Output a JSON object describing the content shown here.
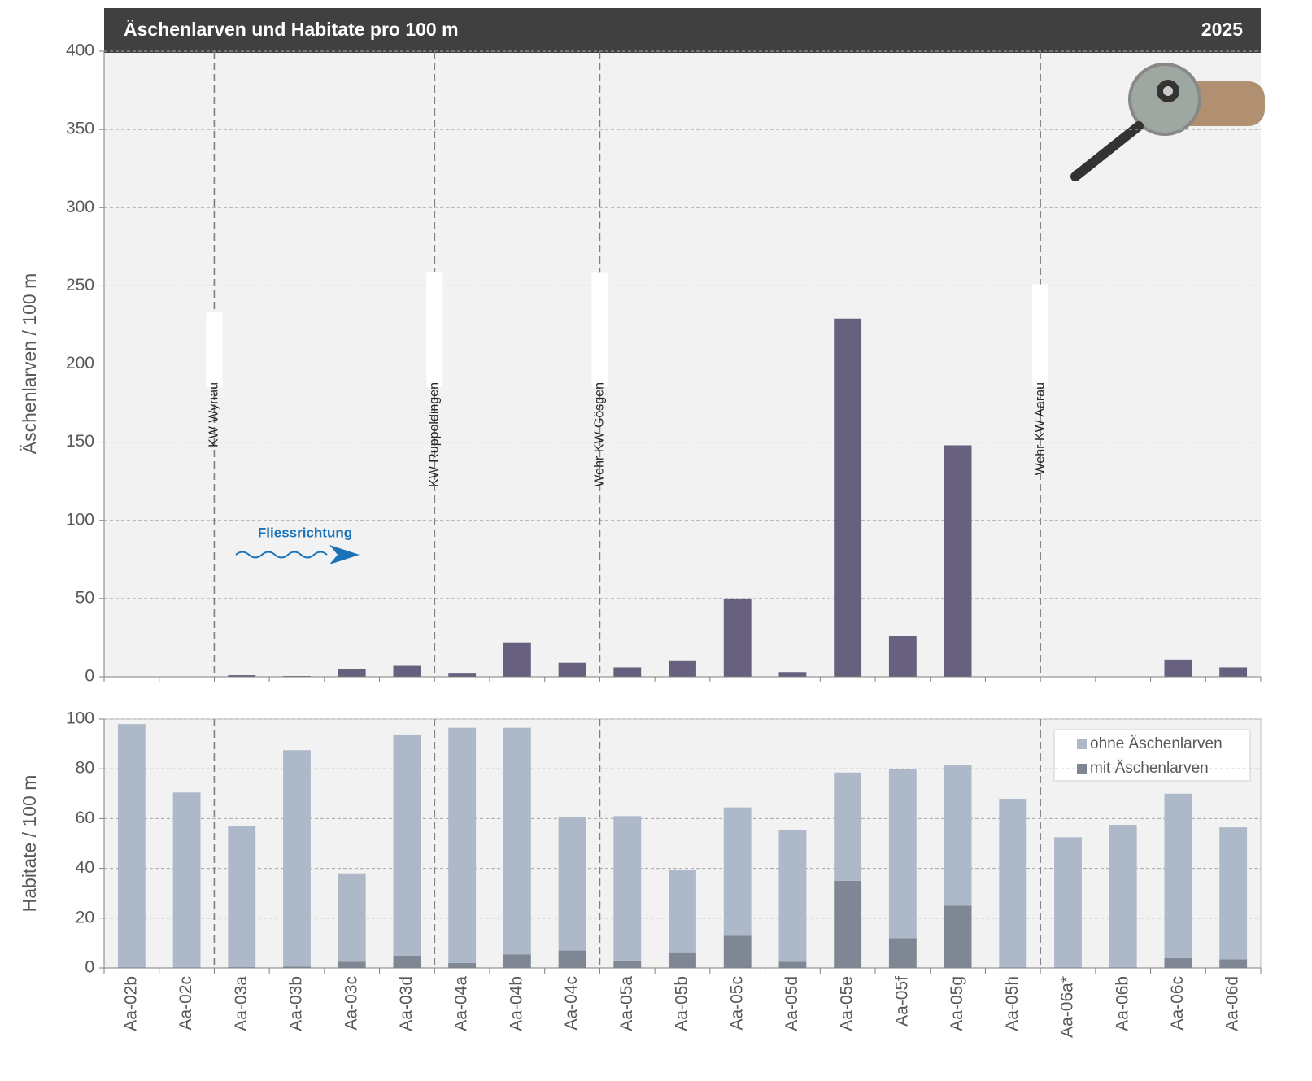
{
  "chart_data": [
    {
      "type": "bar",
      "title": "Äschenlarven und Habitate pro 100 m",
      "subtitle": "2025",
      "ylabel": "Äschenlarven / 100 m",
      "values": [
        0,
        0,
        1,
        0.5,
        5,
        7,
        2,
        22,
        9,
        6,
        10,
        50,
        3,
        229,
        26,
        148,
        0,
        0,
        0,
        11,
        6
      ],
      "color": "#67607e",
      "ylim": [
        0,
        400
      ],
      "yticks": [
        0,
        50,
        100,
        150,
        200,
        250,
        300,
        350,
        400
      ],
      "grid": true,
      "annotations": [
        "KW Wynau",
        "KW Ruppoldingen",
        "Wehr KW Gösgen",
        "Wehr KW Aarau",
        "Fliessrichtung"
      ]
    },
    {
      "type": "stacked_bar",
      "ylabel": "Habitate / 100 m",
      "categories": [
        "Aa-02b",
        "Aa-02c",
        "Aa-03a",
        "Aa-03b",
        "Aa-03c",
        "Aa-03d",
        "Aa-04a",
        "Aa-04b",
        "Aa-04c",
        "Aa-05a",
        "Aa-05b",
        "Aa-05c",
        "Aa-05d",
        "Aa-05e",
        "Aa-05f",
        "Aa-05g",
        "Aa-05h",
        "Aa-06a*",
        "Aa-06b",
        "Aa-06c",
        "Aa-06d"
      ],
      "series": [
        {
          "name": "ohne Äschenlarven",
          "color": "#adb9c9",
          "values": [
            98,
            70.5,
            56.7,
            87,
            35.5,
            88.5,
            94.5,
            91,
            53.5,
            58,
            33.5,
            51.5,
            53,
            43.5,
            68,
            56.5,
            68,
            52.5,
            57.5,
            66,
            53
          ]
        },
        {
          "name": "mit Äschenlarven",
          "color": "#7f8794",
          "values": [
            0,
            0,
            0.3,
            0.5,
            2.5,
            5,
            2,
            5.5,
            7,
            3,
            6,
            13,
            2.5,
            35,
            12,
            25,
            0,
            0,
            0,
            4,
            3.5
          ]
        }
      ],
      "ylim": [
        0,
        100
      ],
      "yticks": [
        0,
        20,
        40,
        60,
        80,
        100
      ],
      "grid": true,
      "legend": "top-right"
    }
  ]
}
